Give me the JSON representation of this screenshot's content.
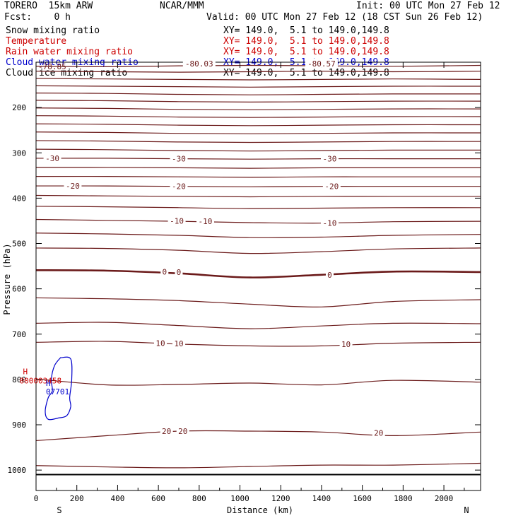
{
  "header": {
    "model": "TORERO  15km ARW",
    "org": "NCAR/MMM",
    "init": "Init: 00 UTC Mon 27 Feb 12",
    "fcst": "Fcst:    0 h",
    "valid": "Valid: 00 UTC Mon 27 Feb 12 (18 CST Sun 26 Feb 12)"
  },
  "fields": [
    {
      "name": "Snow mixing ratio",
      "xy": "XY= 149.0,  5.1 to 149.0,149.8",
      "color": "#000000"
    },
    {
      "name": "Temperature",
      "xy": "XY= 149.0,  5.1 to 149.0,149.8",
      "color": "#cc0000"
    },
    {
      "name": "Rain water mixing ratio",
      "xy": "XY= 149.0,  5.1 to 149.0,149.8",
      "color": "#cc0000"
    },
    {
      "name": "Cloud water mixing ratio",
      "xy": "XY= 149.0,  5.1 to 149.0,149.8",
      "color": "#0000cc"
    },
    {
      "name": "Cloud ice mixing ratio",
      "xy": "XY= 149.0,  5.1 to 149.0,149.8",
      "color": "#000000"
    }
  ],
  "chart_data": {
    "type": "line",
    "xlabel": "Distance (km)",
    "ylabel": "Pressure (hPa)",
    "xlim": [
      0,
      2180
    ],
    "ylim": [
      100,
      1045
    ],
    "x_ticks": [
      0,
      200,
      400,
      600,
      800,
      1000,
      1200,
      1400,
      1600,
      1800,
      2000
    ],
    "y_ticks": [
      200,
      300,
      400,
      500,
      600,
      700,
      800,
      900,
      1000
    ],
    "end_labels": {
      "left": "S",
      "right": "N"
    },
    "contour_color": "#6b1a1a",
    "isotherm_levels": [
      {
        "y": [
          109,
          110,
          108,
          107,
          108,
          109,
          107
        ],
        "label": ""
      },
      {
        "y": [
          120,
          121,
          122,
          121,
          120,
          121,
          120
        ],
        "label": ""
      },
      {
        "y": [
          136,
          137,
          138,
          139,
          138,
          137,
          138
        ],
        "label": ""
      },
      {
        "y": [
          152,
          153,
          154,
          155,
          154,
          153,
          153
        ],
        "label": ""
      },
      {
        "y": [
          168,
          169,
          171,
          172,
          171,
          170,
          170
        ],
        "label": ""
      },
      {
        "y": [
          184,
          185,
          187,
          188,
          187,
          186,
          186
        ],
        "label": ""
      },
      {
        "y": [
          201,
          202,
          204,
          205,
          204,
          203,
          203
        ],
        "label": ""
      },
      {
        "y": [
          218,
          219,
          221,
          222,
          221,
          220,
          220
        ],
        "label": ""
      },
      {
        "y": [
          236,
          237,
          239,
          240,
          239,
          238,
          238
        ],
        "label": ""
      },
      {
        "y": [
          254,
          255,
          257,
          258,
          257,
          256,
          256
        ],
        "label": ""
      },
      {
        "y": [
          273,
          274,
          276,
          277,
          276,
          275,
          275
        ],
        "label": ""
      },
      {
        "y": [
          292,
          293,
          295,
          296,
          295,
          294,
          294
        ],
        "label": ""
      },
      {
        "y": [
          312,
          312,
          313,
          314,
          313,
          313,
          313
        ],
        "label": "-30"
      },
      {
        "y": [
          332,
          332,
          333,
          334,
          333,
          333,
          333
        ],
        "label": ""
      },
      {
        "y": [
          352,
          352,
          353,
          354,
          353,
          353,
          353
        ],
        "label": ""
      },
      {
        "y": [
          373,
          373,
          374,
          375,
          374,
          374,
          374
        ],
        "label": "-20"
      },
      {
        "y": [
          394,
          395,
          396,
          397,
          396,
          396,
          396
        ],
        "label": ""
      },
      {
        "y": [
          418,
          419,
          421,
          423,
          422,
          421,
          421
        ],
        "label": ""
      },
      {
        "y": [
          447,
          449,
          451,
          454,
          455,
          452,
          451
        ],
        "label": "-10"
      },
      {
        "y": [
          477,
          479,
          482,
          487,
          486,
          482,
          480
        ],
        "label": ""
      },
      {
        "y": [
          510,
          511,
          515,
          522,
          518,
          512,
          510
        ],
        "label": ""
      },
      {
        "y": [
          559,
          560,
          566,
          575,
          569,
          562,
          563
        ],
        "label": "0"
      },
      {
        "y": [
          620,
          622,
          626,
          634,
          640,
          628,
          624
        ],
        "label": ""
      },
      {
        "y": [
          676,
          674,
          681,
          688,
          682,
          676,
          677
        ],
        "label": ""
      },
      {
        "y": [
          718,
          716,
          722,
          726,
          726,
          720,
          718
        ],
        "label": "10"
      },
      {
        "y": [
          799,
          812,
          811,
          808,
          812,
          802,
          806
        ],
        "label": ""
      },
      {
        "y": [
          935,
          924,
          914,
          914,
          916,
          924,
          916
        ],
        "label": "20"
      },
      {
        "y": [
          990,
          993,
          995,
          992,
          989,
          989,
          985
        ],
        "label": ""
      }
    ],
    "isotherm_x": [
      0,
      350,
      700,
      1050,
      1400,
      1750,
      2180
    ],
    "ground_pressure": 1010,
    "inline_labels": [
      {
        "x": 80,
        "p": 312,
        "text": "-30"
      },
      {
        "x": 700,
        "p": 313,
        "text": "-30"
      },
      {
        "x": 1440,
        "p": 313,
        "text": "-30"
      },
      {
        "x": 180,
        "p": 373,
        "text": "-20"
      },
      {
        "x": 700,
        "p": 374,
        "text": "-20"
      },
      {
        "x": 1450,
        "p": 374,
        "text": "-20"
      },
      {
        "x": 690,
        "p": 450,
        "text": "-10"
      },
      {
        "x": 830,
        "p": 451,
        "text": "-10"
      },
      {
        "x": 1440,
        "p": 455,
        "text": "-10"
      },
      {
        "x": 630,
        "p": 562,
        "text": "0"
      },
      {
        "x": 700,
        "p": 563,
        "text": "0"
      },
      {
        "x": 1440,
        "p": 569,
        "text": "0"
      },
      {
        "x": 610,
        "p": 720,
        "text": "10"
      },
      {
        "x": 700,
        "p": 721,
        "text": "10"
      },
      {
        "x": 1520,
        "p": 722,
        "text": "10"
      },
      {
        "x": 640,
        "p": 914,
        "text": "20"
      },
      {
        "x": 720,
        "p": 914,
        "text": "20"
      },
      {
        "x": 1680,
        "p": 918,
        "text": "20"
      }
    ],
    "top_labels": [
      {
        "x": 800,
        "p": 103,
        "text": "-80.03"
      },
      {
        "x": 1400,
        "p": 103,
        "text": "-80.57"
      }
    ],
    "top_left_label": "-78.85",
    "rain_marker": {
      "x": 40,
      "p": 782,
      "symbol": "H",
      "value": "000003458"
    },
    "cloud_water_marker": {
      "x": 90,
      "p": 808,
      "symbol": "H",
      "value": "07701"
    },
    "cloud_water_contour": {
      "x": [
        120,
        170,
        175,
        165,
        170,
        150,
        110,
        60,
        45,
        60,
        80,
        75,
        90,
        120
      ],
      "p": [
        752,
        755,
        800,
        840,
        860,
        880,
        885,
        888,
        870,
        840,
        825,
        800,
        770,
        752
      ]
    }
  }
}
